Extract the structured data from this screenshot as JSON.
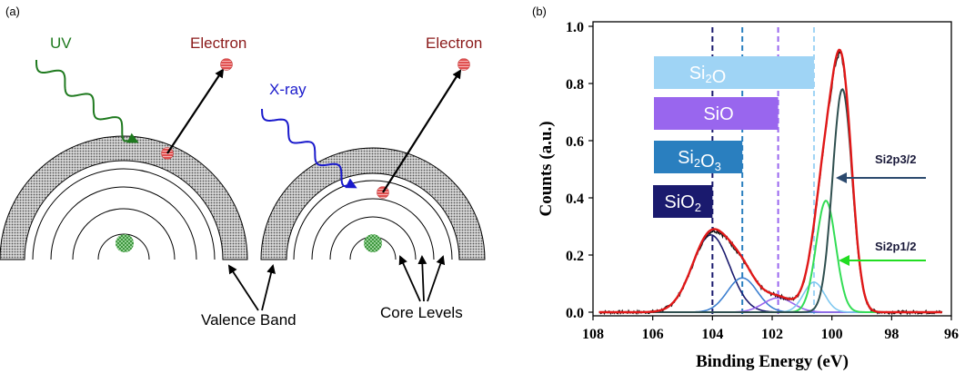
{
  "panel_a": {
    "label": "(a)",
    "uv_label": "UV",
    "xray_label": "X-ray",
    "electron_left": "Electron",
    "electron_right": "Electron",
    "valence_band_label": "Valence Band",
    "core_levels_label": "Core Levels",
    "colors": {
      "uv": "#1f7a1f",
      "xray": "#1a1acc",
      "electron_text": "#8b1a1a",
      "electron_dot": "#e05050",
      "nucleus": "#2e8b2e",
      "band_fill": "#b0b0b0"
    }
  },
  "panel_b": {
    "label": "(b)",
    "legend_boxes": [
      {
        "name": "si2o",
        "text": "Si",
        "sub": "2",
        "text2": "O",
        "sub2": "",
        "color": "#9fd4f5",
        "text_color": "#ffffff"
      },
      {
        "name": "sio",
        "text": "SiO",
        "sub": "",
        "text2": "",
        "sub2": "",
        "color": "#9966ee",
        "text_color": "#ffffff"
      },
      {
        "name": "si2o3",
        "text": "Si",
        "sub": "2",
        "text2": "O",
        "sub2": "3",
        "color": "#2a7fbf",
        "text_color": "#ffffff"
      },
      {
        "name": "sio2",
        "text": "SiO",
        "sub": "2",
        "text2": "",
        "sub2": "",
        "color": "#1a1a6e",
        "text_color": "#ffffff"
      }
    ],
    "peak_labels": {
      "p32": "Si2p3/2",
      "p12": "Si2p1/2"
    }
  },
  "chart_data": {
    "type": "line",
    "xlabel": "Binding Energy (eV)",
    "ylabel": "Counts (a.u.)",
    "xlim": [
      108,
      96
    ],
    "ylim": [
      0.0,
      1.0
    ],
    "x_reversed": true,
    "xticks": [
      108,
      106,
      104,
      102,
      100,
      98,
      96
    ],
    "yticks": [
      0.0,
      0.2,
      0.4,
      0.6,
      0.8,
      1.0
    ],
    "ytick_labels": [
      "0.0",
      "0.2",
      "0.4",
      "0.6",
      "0.8",
      "1.0"
    ],
    "reference_lines": [
      {
        "x": 104.0,
        "color": "#1a1a6e"
      },
      {
        "x": 103.0,
        "color": "#2a7fbf"
      },
      {
        "x": 101.8,
        "color": "#9966ee"
      },
      {
        "x": 100.6,
        "color": "#9fd4f5"
      }
    ],
    "components": [
      {
        "name": "SiO2",
        "center": 104.05,
        "amplitude": 0.27,
        "sigma": 0.62,
        "color": "#1a1a6e"
      },
      {
        "name": "Si2O3",
        "center": 103.0,
        "amplitude": 0.12,
        "sigma": 0.5,
        "color": "#3c7fd0"
      },
      {
        "name": "SiO",
        "center": 101.8,
        "amplitude": 0.05,
        "sigma": 0.5,
        "color": "#9966ee"
      },
      {
        "name": "Si2O",
        "center": 100.6,
        "amplitude": 0.105,
        "sigma": 0.35,
        "color": "#7fc8f0"
      },
      {
        "name": "Si2p1/2",
        "center": 100.2,
        "amplitude": 0.39,
        "sigma": 0.33,
        "color": "#33dd55"
      },
      {
        "name": "Si2p3/2",
        "center": 99.65,
        "amplitude": 0.78,
        "sigma": 0.33,
        "color": "#2f4f4f"
      }
    ],
    "envelope_color": "#e01818",
    "data_color": "#111111"
  }
}
